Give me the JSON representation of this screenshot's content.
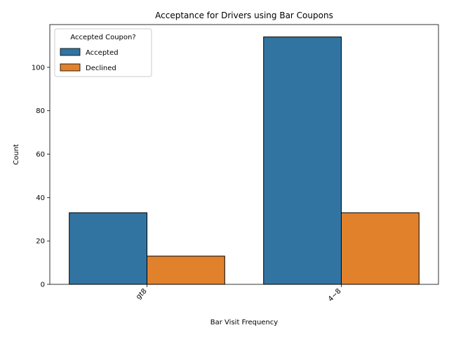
{
  "chart_data": {
    "type": "bar",
    "title": "Acceptance for Drivers using Bar Coupons",
    "xlabel": "Bar Visit Frequency",
    "ylabel": "Count",
    "categories": [
      "gt8",
      "4~8"
    ],
    "series": [
      {
        "name": "Accepted",
        "values": [
          33,
          114
        ],
        "color": "#3274a1"
      },
      {
        "name": "Declined",
        "values": [
          13,
          33
        ],
        "color": "#e1812c"
      }
    ],
    "ylim": [
      0,
      119.7
    ],
    "yticks": [
      0,
      20,
      40,
      60,
      80,
      100
    ],
    "legend": {
      "title": "Accepted Coupon?",
      "position": "top-left"
    },
    "grid": false
  }
}
